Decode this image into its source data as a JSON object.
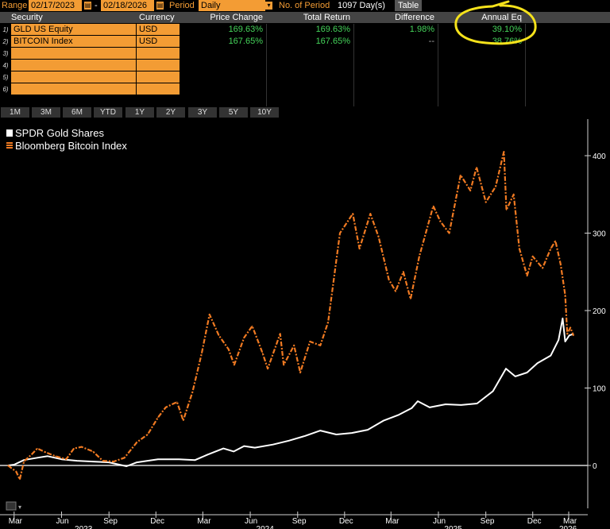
{
  "toolbar": {
    "range_label": "Range",
    "start_date": "02/17/2023",
    "dash": "-",
    "end_date": "02/18/2026",
    "period_label": "Period",
    "period_value": "Daily",
    "num_period_label": "No. of Period",
    "num_period_value": "1097 Day(s)",
    "table_button": "Table"
  },
  "table": {
    "headers": [
      "Security",
      "Currency",
      "Price Change",
      "Total Return",
      "Difference",
      "Annual Eq"
    ],
    "rows": [
      {
        "num": "1)",
        "security": "GLD US Equity",
        "currency": "USD",
        "price_change": "169.63%",
        "total_return": "169.63%",
        "difference": "1.98%",
        "annual_eq": "39.10%"
      },
      {
        "num": "2)",
        "security": "BITCOIN Index",
        "currency": "USD",
        "price_change": "167.65%",
        "total_return": "167.65%",
        "difference": "--",
        "annual_eq": "38.76%"
      },
      {
        "num": "3)",
        "security": "",
        "currency": "",
        "price_change": "",
        "total_return": "",
        "difference": "",
        "annual_eq": ""
      },
      {
        "num": "4)",
        "security": "",
        "currency": "",
        "price_change": "",
        "total_return": "",
        "difference": "",
        "annual_eq": ""
      },
      {
        "num": "5)",
        "security": "",
        "currency": "",
        "price_change": "",
        "total_return": "",
        "difference": "",
        "annual_eq": ""
      },
      {
        "num": "6)",
        "security": "",
        "currency": "",
        "price_change": "",
        "total_return": "",
        "difference": "",
        "annual_eq": ""
      }
    ]
  },
  "periods": [
    "1M",
    "3M",
    "6M",
    "YTD",
    "1Y",
    "2Y",
    "3Y",
    "5Y",
    "10Y"
  ],
  "colors": {
    "accent": "#f39c34",
    "positive": "#45d45a",
    "gold_line": "#ffffff",
    "bitcoin_line": "#f07a22",
    "highlight_circle": "#f5e21b"
  },
  "chart_data": {
    "type": "line",
    "title": "",
    "xlabel": "",
    "ylabel": "",
    "ylim": [
      -50,
      450
    ],
    "yticks": [
      0,
      100,
      200,
      300,
      400
    ],
    "ytick_labels": [
      "0",
      "100",
      "200",
      "300",
      "400"
    ],
    "x_month_labels": [
      "Mar",
      "Jun",
      "Sep",
      "Dec",
      "Mar",
      "Jun",
      "Sep",
      "Dec",
      "Mar",
      "Jun",
      "Sep",
      "Dec",
      "Mar"
    ],
    "x_year_labels": [
      "2023",
      "2024",
      "2025",
      "2026"
    ],
    "grid": false,
    "legend_position": "top-left",
    "zero_line": true,
    "series": [
      {
        "name": "SPDR Gold Shares",
        "style": "solid",
        "points": [
          [
            "2023-02-17",
            0
          ],
          [
            "2023-03-01",
            1
          ],
          [
            "2023-03-20",
            7
          ],
          [
            "2023-04-15",
            10
          ],
          [
            "2023-05-05",
            12
          ],
          [
            "2023-06-01",
            8
          ],
          [
            "2023-07-01",
            6
          ],
          [
            "2023-08-01",
            5
          ],
          [
            "2023-09-01",
            4
          ],
          [
            "2023-10-05",
            -1
          ],
          [
            "2023-10-25",
            4
          ],
          [
            "2023-11-15",
            6
          ],
          [
            "2023-12-05",
            8
          ],
          [
            "2024-01-15",
            8
          ],
          [
            "2024-02-15",
            7
          ],
          [
            "2024-03-10",
            14
          ],
          [
            "2024-04-10",
            22
          ],
          [
            "2024-04-30",
            18
          ],
          [
            "2024-05-20",
            25
          ],
          [
            "2024-06-10",
            23
          ],
          [
            "2024-07-15",
            27
          ],
          [
            "2024-08-15",
            32
          ],
          [
            "2024-09-15",
            38
          ],
          [
            "2024-10-15",
            45
          ],
          [
            "2024-11-15",
            40
          ],
          [
            "2024-12-15",
            42
          ],
          [
            "2025-01-15",
            46
          ],
          [
            "2025-02-15",
            58
          ],
          [
            "2025-03-15",
            65
          ],
          [
            "2025-04-10",
            74
          ],
          [
            "2025-04-22",
            83
          ],
          [
            "2025-05-15",
            75
          ],
          [
            "2025-06-15",
            79
          ],
          [
            "2025-07-15",
            78
          ],
          [
            "2025-08-15",
            80
          ],
          [
            "2025-09-15",
            96
          ],
          [
            "2025-10-10",
            125
          ],
          [
            "2025-10-28",
            115
          ],
          [
            "2025-11-20",
            120
          ],
          [
            "2025-12-10",
            132
          ],
          [
            "2026-01-05",
            142
          ],
          [
            "2026-01-20",
            162
          ],
          [
            "2026-01-28",
            190
          ],
          [
            "2026-02-02",
            160
          ],
          [
            "2026-02-10",
            168
          ],
          [
            "2026-02-18",
            169.63
          ]
        ]
      },
      {
        "name": "Bloomberg Bitcoin Index",
        "style": "dash-dot",
        "points": [
          [
            "2023-02-17",
            0
          ],
          [
            "2023-03-05",
            -8
          ],
          [
            "2023-03-12",
            -18
          ],
          [
            "2023-03-20",
            5
          ],
          [
            "2023-04-05",
            15
          ],
          [
            "2023-04-15",
            22
          ],
          [
            "2023-05-01",
            17
          ],
          [
            "2023-05-20",
            12
          ],
          [
            "2023-06-10",
            8
          ],
          [
            "2023-06-25",
            22
          ],
          [
            "2023-07-10",
            24
          ],
          [
            "2023-08-01",
            18
          ],
          [
            "2023-08-20",
            6
          ],
          [
            "2023-09-10",
            5
          ],
          [
            "2023-10-01",
            10
          ],
          [
            "2023-10-25",
            30
          ],
          [
            "2023-11-15",
            40
          ],
          [
            "2023-12-05",
            62
          ],
          [
            "2023-12-20",
            75
          ],
          [
            "2024-01-11",
            82
          ],
          [
            "2024-01-23",
            58
          ],
          [
            "2024-02-10",
            95
          ],
          [
            "2024-02-28",
            145
          ],
          [
            "2024-03-14",
            195
          ],
          [
            "2024-04-01",
            168
          ],
          [
            "2024-04-20",
            150
          ],
          [
            "2024-05-01",
            130
          ],
          [
            "2024-05-20",
            165
          ],
          [
            "2024-06-05",
            180
          ],
          [
            "2024-06-25",
            145
          ],
          [
            "2024-07-05",
            125
          ],
          [
            "2024-07-29",
            170
          ],
          [
            "2024-08-05",
            130
          ],
          [
            "2024-08-25",
            155
          ],
          [
            "2024-09-06",
            120
          ],
          [
            "2024-09-25",
            160
          ],
          [
            "2024-10-15",
            155
          ],
          [
            "2024-10-30",
            185
          ],
          [
            "2024-11-12",
            250
          ],
          [
            "2024-11-22",
            300
          ],
          [
            "2024-12-17",
            325
          ],
          [
            "2024-12-30",
            280
          ],
          [
            "2025-01-20",
            325
          ],
          [
            "2025-02-05",
            295
          ],
          [
            "2025-02-25",
            240
          ],
          [
            "2025-03-10",
            225
          ],
          [
            "2025-03-25",
            250
          ],
          [
            "2025-04-08",
            215
          ],
          [
            "2025-04-25",
            270
          ],
          [
            "2025-05-22",
            335
          ],
          [
            "2025-06-05",
            315
          ],
          [
            "2025-06-22",
            300
          ],
          [
            "2025-07-14",
            375
          ],
          [
            "2025-08-02",
            355
          ],
          [
            "2025-08-14",
            385
          ],
          [
            "2025-09-01",
            340
          ],
          [
            "2025-09-20",
            360
          ],
          [
            "2025-10-06",
            405
          ],
          [
            "2025-10-11",
            330
          ],
          [
            "2025-10-25",
            350
          ],
          [
            "2025-11-05",
            280
          ],
          [
            "2025-11-20",
            245
          ],
          [
            "2025-12-01",
            270
          ],
          [
            "2025-12-20",
            255
          ],
          [
            "2026-01-05",
            280
          ],
          [
            "2026-01-14",
            290
          ],
          [
            "2026-01-24",
            260
          ],
          [
            "2026-02-02",
            220
          ],
          [
            "2026-02-06",
            170
          ],
          [
            "2026-02-12",
            178
          ],
          [
            "2026-02-18",
            167.65
          ]
        ]
      }
    ]
  }
}
